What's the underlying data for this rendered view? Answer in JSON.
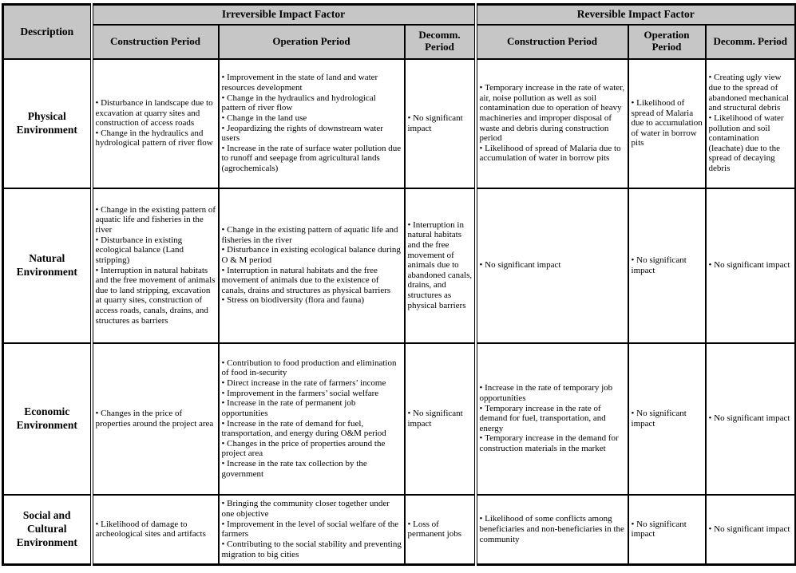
{
  "header": {
    "description": "Description",
    "groups": [
      {
        "label": "Irreversible Impact Factor",
        "periods": [
          "Construction Period",
          "Operation Period",
          "Decomm. Period"
        ]
      },
      {
        "label": "Reversible Impact Factor",
        "periods": [
          "Construction Period",
          "Operation Period",
          "Decomm. Period"
        ]
      }
    ]
  },
  "rows": [
    {
      "label": "Physical Environment",
      "cells": [
        [
          "Disturbance in landscape due to excavation at quarry sites and construction of access roads",
          "Change in the hydraulics and hydrological pattern of river flow"
        ],
        [
          "Improvement in the state of land and water resources development",
          "Change in the hydraulics and hydrological pattern of river flow",
          "Change in the land use",
          "Jeopardizing the rights of downstream water users",
          "Increase in the rate of surface water pollution due to runoff and seepage from agricultural lands (agrochemicals)"
        ],
        [
          "No significant impact"
        ],
        [
          "Temporary increase in the rate of water, air, noise pollution as well as soil contamination due to operation of heavy machineries and improper disposal of waste and debris during construction period",
          "Likelihood of spread of Malaria due to accumulation of water in borrow pits"
        ],
        [
          "Likelihood of spread of Malaria due to accumulation of water in borrow pits"
        ],
        [
          "Creating ugly view due to the spread of abandoned mechanical and structural debris",
          "Likelihood of water pollution and soil contamination (leachate) due to the spread of decaying debris"
        ]
      ]
    },
    {
      "label": "Natural Environment",
      "cells": [
        [
          "Change in the existing pattern of aquatic life and fisheries in the river",
          "Disturbance in existing ecological balance (Land stripping)",
          "Interruption in natural habitats and the free movement of animals due to land stripping, excavation at quarry sites, construction of access roads, canals, drains, and structures as barriers"
        ],
        [
          "Change in the existing pattern of aquatic life and fisheries in the river",
          "Disturbance in existing ecological balance during O & M period",
          "Interruption in natural habitats and the free movement of animals due to the existence of canals, drains and structures as physical barriers",
          "Stress on biodiversity (flora and fauna)"
        ],
        [
          "Interruption in natural habitats and the free movement of animals due to abandoned canals, drains, and structures as physical barriers"
        ],
        [
          "No significant impact"
        ],
        [
          "No significant impact"
        ],
        [
          "No significant impact"
        ]
      ]
    },
    {
      "label": "Economic Environment",
      "cells": [
        [
          "Changes in the price of properties around the project area"
        ],
        [
          "Contribution to food production and elimination of food in-security",
          "Direct increase in the rate of farmers’ income",
          "Improvement in the farmers’ social welfare",
          "Increase in the rate of permanent job opportunities",
          "Increase in the rate of demand for fuel, transportation, and energy during O&M period",
          "Changes in the price of properties around the project area",
          "Increase in the rate tax collection by the government"
        ],
        [
          "No significant impact"
        ],
        [
          "Increase in the rate of temporary job opportunities",
          "Temporary increase in the rate of demand for fuel, transportation, and energy",
          "Temporary increase in the demand for construction materials in the market"
        ],
        [
          "No significant impact"
        ],
        [
          "No significant impact"
        ]
      ]
    },
    {
      "label": "Social and Cultural Environment",
      "cells": [
        [
          "Likelihood of damage to archeological sites and artifacts"
        ],
        [
          "Bringing the community closer together under one objective",
          "Improvement in the level of social welfare of the farmers",
          "Contributing to the social stability and preventing migration to big cities"
        ],
        [
          "Loss of permanent jobs"
        ],
        [
          "Likelihood of some conflicts among beneficiaries and non-beneficiaries in the community"
        ],
        [
          "No significant impact"
        ],
        [
          "No significant impact"
        ]
      ]
    }
  ]
}
